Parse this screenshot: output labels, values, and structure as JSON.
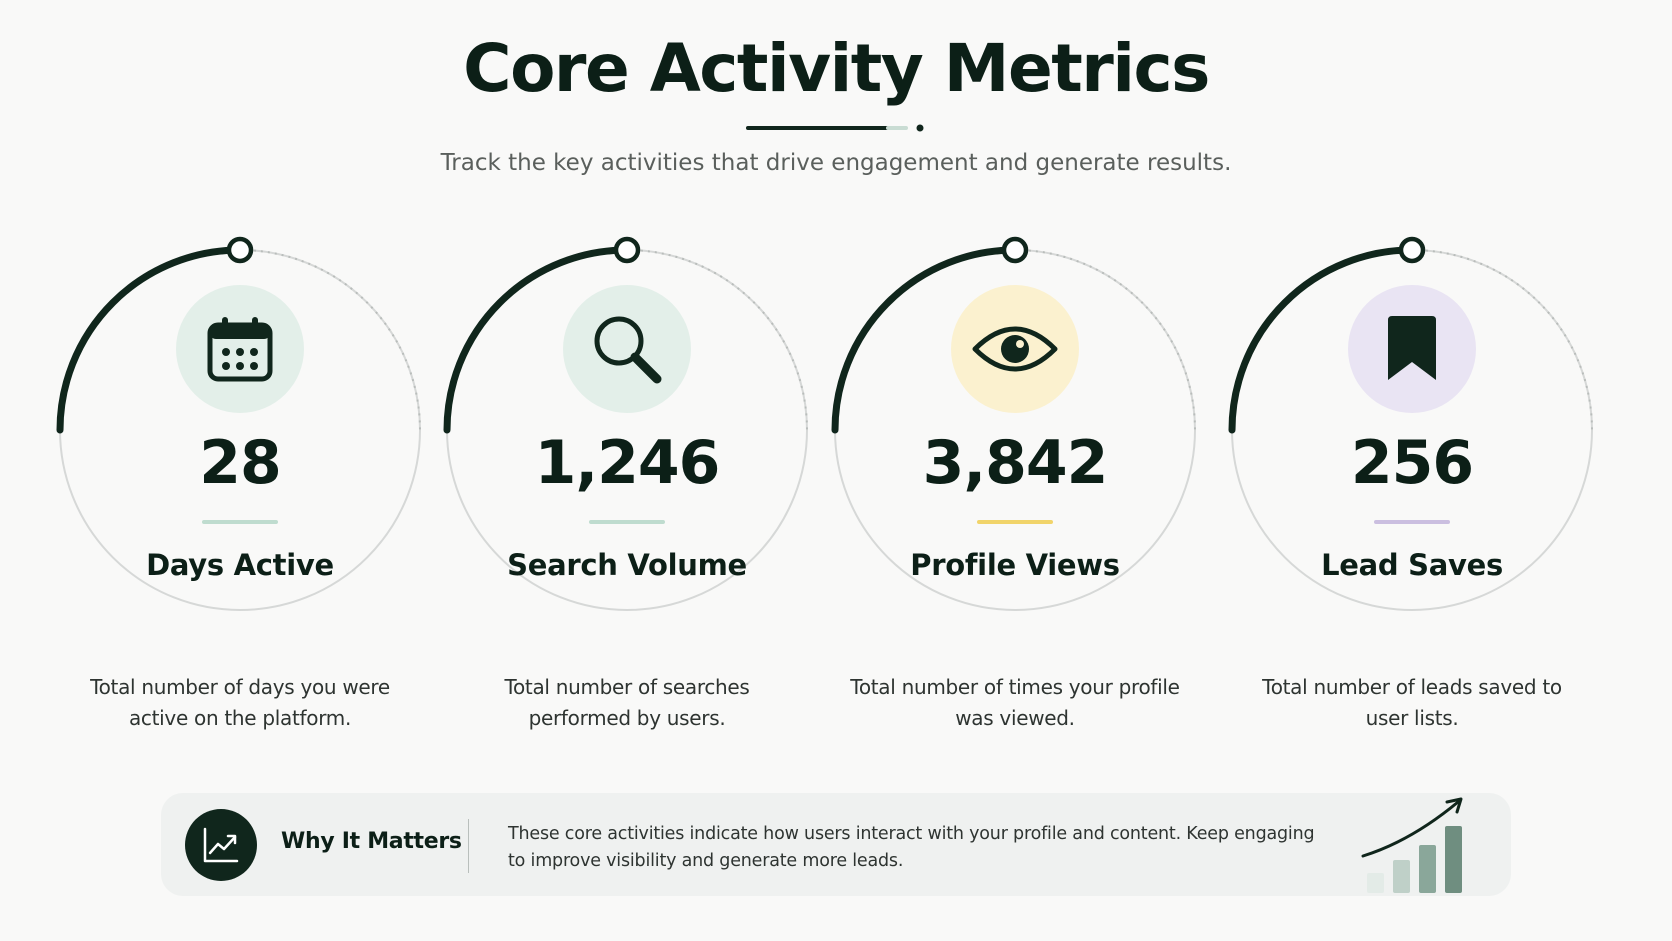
{
  "header": {
    "title": "Core Activity Metrics",
    "subtitle": "Track the key activities that drive engagement and generate results."
  },
  "metrics": [
    {
      "value": "28",
      "label": "Days Active",
      "description": "Total number of days you were active on the platform.",
      "icon": "calendar-icon",
      "icon_bg": "#e3efe9",
      "accent": "#bfdccf"
    },
    {
      "value": "1,246",
      "label": "Search Volume",
      "description": "Total number of searches performed by users.",
      "icon": "magnifier-icon",
      "icon_bg": "#e3efe9",
      "accent": "#bfdccf"
    },
    {
      "value": "3,842",
      "label": "Profile Views",
      "description": "Total number of times your profile was viewed.",
      "icon": "eye-icon",
      "icon_bg": "#fbf1cf",
      "accent": "#f1d46a"
    },
    {
      "value": "256",
      "label": "Lead Saves",
      "description": "Total number of leads saved to user lists.",
      "icon": "bookmark-icon",
      "icon_bg": "#e9e4f3",
      "accent": "#cbbfe0"
    }
  ],
  "banner": {
    "title": "Why It Matters",
    "text": "These core activities indicate how users interact with your profile and content. Keep engaging to improve visibility and generate more leads.",
    "icon": "trend-chart-icon",
    "decor_icon": "growth-bars-icon"
  },
  "colors": {
    "primary": "#10261c",
    "ring": "#d6d8d7",
    "background": "#f9f9f8"
  }
}
